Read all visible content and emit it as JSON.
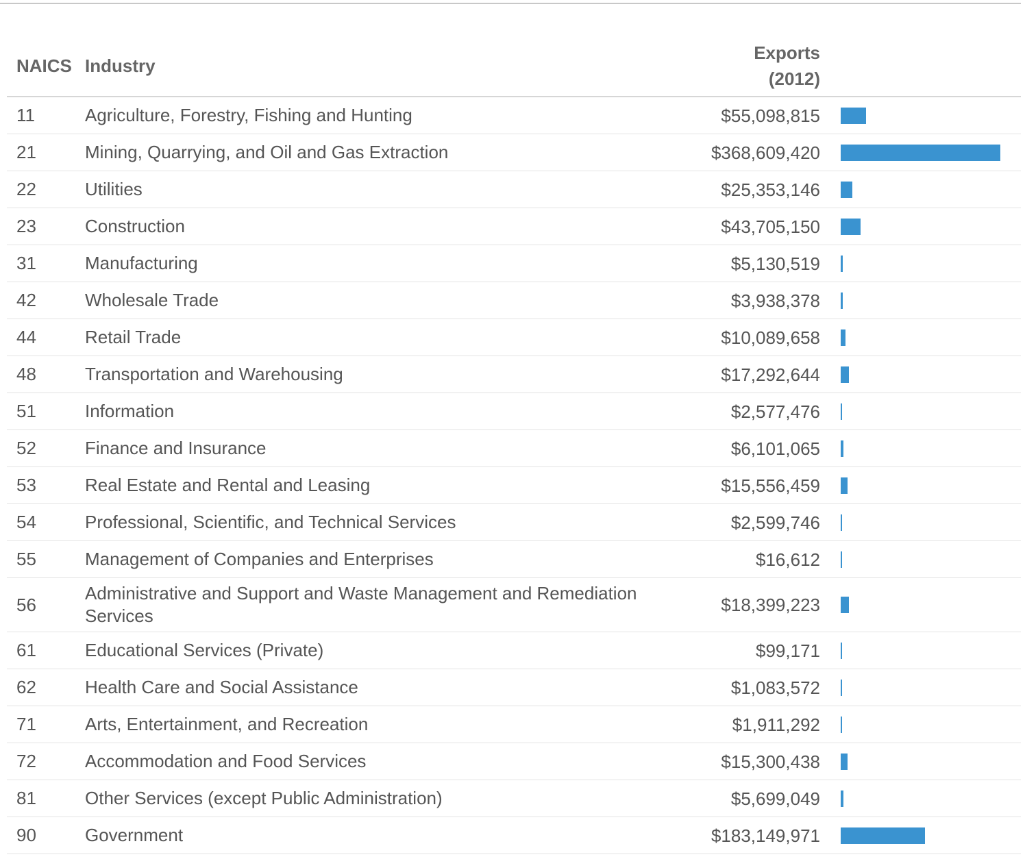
{
  "table": {
    "header": {
      "naics": "NAICS",
      "industry": "Industry",
      "exports": "Exports (2012)"
    },
    "rows": [
      {
        "naics": "11",
        "industry": "Agriculture, Forestry, Fishing and Hunting",
        "exports": 55098815,
        "exports_label": "$55,098,815"
      },
      {
        "naics": "21",
        "industry": "Mining, Quarrying, and Oil and Gas Extraction",
        "exports": 368609420,
        "exports_label": "$368,609,420"
      },
      {
        "naics": "22",
        "industry": "Utilities",
        "exports": 25353146,
        "exports_label": "$25,353,146"
      },
      {
        "naics": "23",
        "industry": "Construction",
        "exports": 43705150,
        "exports_label": "$43,705,150"
      },
      {
        "naics": "31",
        "industry": "Manufacturing",
        "exports": 5130519,
        "exports_label": "$5,130,519"
      },
      {
        "naics": "42",
        "industry": "Wholesale Trade",
        "exports": 3938378,
        "exports_label": "$3,938,378"
      },
      {
        "naics": "44",
        "industry": "Retail Trade",
        "exports": 10089658,
        "exports_label": "$10,089,658"
      },
      {
        "naics": "48",
        "industry": "Transportation and Warehousing",
        "exports": 17292644,
        "exports_label": "$17,292,644"
      },
      {
        "naics": "51",
        "industry": "Information",
        "exports": 2577476,
        "exports_label": "$2,577,476"
      },
      {
        "naics": "52",
        "industry": "Finance and Insurance",
        "exports": 6101065,
        "exports_label": "$6,101,065"
      },
      {
        "naics": "53",
        "industry": "Real Estate and Rental and Leasing",
        "exports": 15556459,
        "exports_label": "$15,556,459"
      },
      {
        "naics": "54",
        "industry": "Professional, Scientific, and Technical Services",
        "exports": 2599746,
        "exports_label": "$2,599,746"
      },
      {
        "naics": "55",
        "industry": "Management of Companies and Enterprises",
        "exports": 16612,
        "exports_label": "$16,612"
      },
      {
        "naics": "56",
        "industry": "Administrative and Support and Waste Management and Remediation Services",
        "exports": 18399223,
        "exports_label": "$18,399,223"
      },
      {
        "naics": "61",
        "industry": "Educational Services (Private)",
        "exports": 99171,
        "exports_label": "$99,171"
      },
      {
        "naics": "62",
        "industry": "Health Care and Social Assistance",
        "exports": 1083572,
        "exports_label": "$1,083,572"
      },
      {
        "naics": "71",
        "industry": "Arts, Entertainment, and Recreation",
        "exports": 1911292,
        "exports_label": "$1,911,292"
      },
      {
        "naics": "72",
        "industry": "Accommodation and Food Services",
        "exports": 15300438,
        "exports_label": "$15,300,438"
      },
      {
        "naics": "81",
        "industry": "Other Services (except Public Administration)",
        "exports": 5699049,
        "exports_label": "$5,699,049"
      },
      {
        "naics": "90",
        "industry": "Government",
        "exports": 183149971,
        "exports_label": "$183,149,971"
      }
    ]
  }
}
